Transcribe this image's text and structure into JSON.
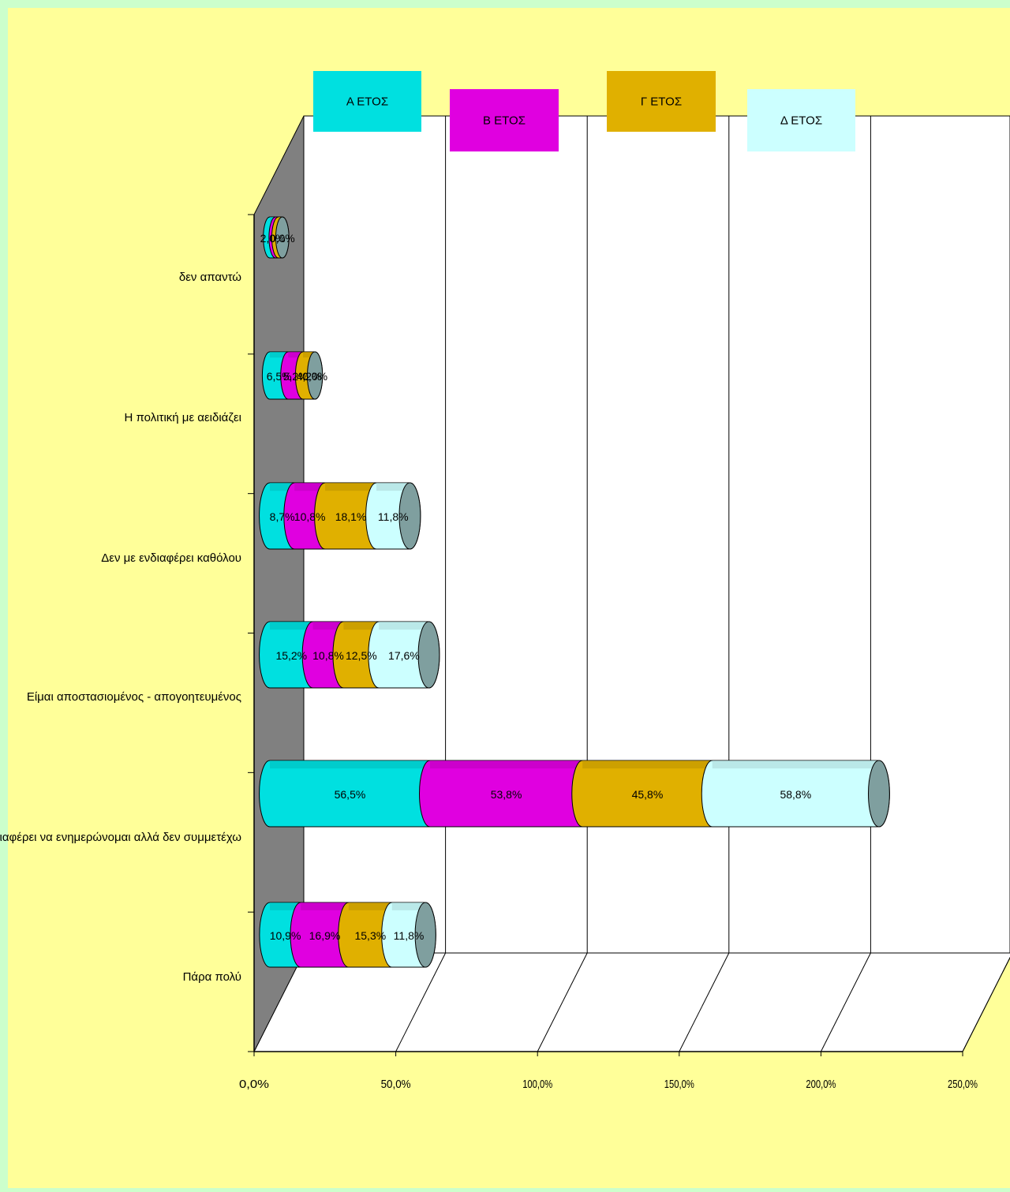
{
  "chart_data": {
    "type": "bar",
    "stacked": true,
    "orientation": "horizontal",
    "categories": [
      "δεν απαντώ",
      "Η πολιτική με αειδιάζει",
      "Δεν με ενδιαφέρει καθόλου",
      "Είμαι αποστασιομένος - απογοητευμένος",
      "Με ενδιαφέρει να ενημερώνομαι αλλά δεν συμμετέχω",
      "Πάρα πολύ"
    ],
    "series": [
      {
        "name": "Α  ΕΤΟΣ",
        "color": "#00E0E0",
        "values": [
          2.0,
          6.5,
          8.7,
          15.2,
          56.5,
          10.9
        ],
        "labels": [
          "2,0%",
          "6,5%",
          "8,7%",
          "15,2%",
          "56,5%",
          "10,9%"
        ]
      },
      {
        "name": "Β  ΕΤΟΣ",
        "color": "#E000E0",
        "values": [
          1.0,
          5.2,
          10.8,
          10.8,
          53.8,
          16.9
        ],
        "labels": [
          "",
          "5,2%",
          "10,8%",
          "10,8%",
          "53,8%",
          "16,9%"
        ]
      },
      {
        "name": "Γ ΕΤΟΣ",
        "color": "#E0B000",
        "values": [
          1.4,
          4.2,
          18.1,
          12.5,
          45.8,
          15.3
        ],
        "labels": [
          "",
          "4,2%",
          "18,1%",
          "12,5%",
          "45,8%",
          "15,3%"
        ]
      },
      {
        "name": "Δ  ΕΤΟΣ",
        "color": "#CCFFFF",
        "values": [
          0.0,
          0.0,
          11.8,
          17.6,
          58.8,
          11.8
        ],
        "labels": [
          "0,0%",
          "0,0%",
          "11,8%",
          "17,6%",
          "58,8%",
          "11,8%"
        ]
      }
    ],
    "xticks": [
      "0,0%",
      "50,0%",
      "100,0%",
      "150,0%",
      "200,0%",
      "250,0%"
    ],
    "xlim": [
      0,
      250
    ],
    "grid": true,
    "legend_position": "top"
  }
}
